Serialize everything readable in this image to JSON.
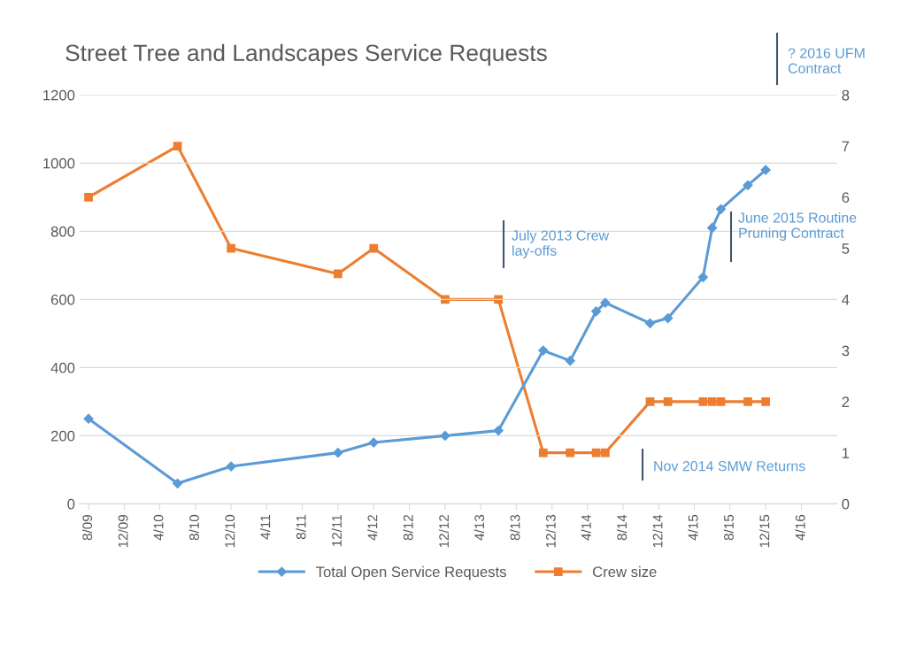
{
  "chart_data": {
    "type": "line",
    "title": "Street Tree and Landscapes Service Requests",
    "xlim": [
      "2009-07",
      "2016-08"
    ],
    "xticks": [
      {
        "value": "2009-08",
        "label": "8/09"
      },
      {
        "value": "2009-12",
        "label": "12/09"
      },
      {
        "value": "2010-04",
        "label": "4/10"
      },
      {
        "value": "2010-08",
        "label": "8/10"
      },
      {
        "value": "2010-12",
        "label": "12/10"
      },
      {
        "value": "2011-04",
        "label": "4/11"
      },
      {
        "value": "2011-08",
        "label": "8/11"
      },
      {
        "value": "2011-12",
        "label": "12/11"
      },
      {
        "value": "2012-04",
        "label": "4/12"
      },
      {
        "value": "2012-08",
        "label": "8/12"
      },
      {
        "value": "2012-12",
        "label": "12/12"
      },
      {
        "value": "2013-04",
        "label": "4/13"
      },
      {
        "value": "2013-08",
        "label": "8/13"
      },
      {
        "value": "2013-12",
        "label": "12/13"
      },
      {
        "value": "2014-04",
        "label": "4/14"
      },
      {
        "value": "2014-08",
        "label": "8/14"
      },
      {
        "value": "2014-12",
        "label": "12/14"
      },
      {
        "value": "2015-04",
        "label": "4/15"
      },
      {
        "value": "2015-08",
        "label": "8/15"
      },
      {
        "value": "2015-12",
        "label": "12/15"
      },
      {
        "value": "2016-04",
        "label": "4/16"
      }
    ],
    "ylim": [
      0,
      1200
    ],
    "yticks": [
      0,
      200,
      400,
      600,
      800,
      1000,
      1200
    ],
    "y2lim": [
      0,
      8
    ],
    "y2ticks": [
      0,
      1,
      2,
      3,
      4,
      5,
      6,
      7,
      8
    ],
    "grid": "y",
    "legend": "bottom",
    "series": [
      {
        "name": "Total Open Service Requests",
        "color": "#5b9bd5",
        "marker": "diamond",
        "x": [
          "2009-08",
          "2010-06",
          "2010-12",
          "2011-12",
          "2012-04",
          "2012-12",
          "2013-06",
          "2013-11",
          "2014-02",
          "2014-05",
          "2014-06",
          "2014-11",
          "2015-01",
          "2015-05",
          "2015-06",
          "2015-07",
          "2015-10",
          "2015-12"
        ],
        "values": [
          250,
          60,
          110,
          150,
          180,
          200,
          215,
          450,
          420,
          565,
          590,
          530,
          545,
          665,
          810,
          865,
          935,
          980
        ]
      },
      {
        "name": "Crew size",
        "color": "#ed7d31",
        "marker": "square",
        "axis": "y2",
        "x": [
          "2009-08",
          "2010-06",
          "2010-12",
          "2011-12",
          "2012-04",
          "2012-12",
          "2013-06",
          "2013-11",
          "2014-02",
          "2014-05",
          "2014-06",
          "2014-11",
          "2015-01",
          "2015-05",
          "2015-06",
          "2015-07",
          "2015-10",
          "2015-12"
        ],
        "values": [
          6,
          7,
          5,
          4.5,
          5,
          4,
          4,
          1,
          1,
          1,
          1,
          2,
          2,
          2,
          2,
          2,
          2,
          2
        ]
      }
    ],
    "annotations": [
      "July 2013 Crew\nlay-offs",
      "June 2015 Routine\nPruning Contract",
      "Nov 2014 SMW Returns",
      "? 2016 UFM\nContract"
    ]
  }
}
